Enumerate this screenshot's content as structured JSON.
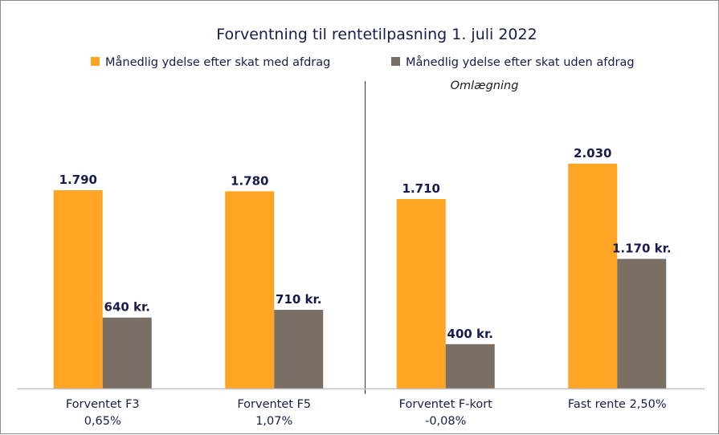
{
  "chart_data": {
    "type": "bar",
    "title": "Forventning til rentetilpasning 1. juli 2022",
    "categories": [
      {
        "line1": "Forventet F3",
        "line2": "0,65%"
      },
      {
        "line1": "Forventet F5",
        "line2": "1,07%"
      },
      {
        "line1": "Forventet F-kort",
        "line2": "-0,08%"
      },
      {
        "line1": "Fast rente 2,50%",
        "line2": ""
      }
    ],
    "series": [
      {
        "name": "Månedlig ydelse efter skat med afdrag",
        "color": "#FFA423",
        "values": [
          1790,
          1780,
          1710,
          2030
        ],
        "labels": [
          "1.790",
          "1.780",
          "1.710",
          "2.030"
        ]
      },
      {
        "name": "Månedlig ydelse efter skat uden afdrag",
        "color": "#7A6F64",
        "values": [
          640,
          710,
          400,
          1170
        ],
        "labels": [
          "640 kr.",
          "710 kr.",
          "400 kr.",
          "1.170 kr."
        ]
      }
    ],
    "annotation": "Omlægning",
    "ylim": [
      0,
      2300
    ],
    "grid": false,
    "legend_position": "top",
    "y_axis_visible": false
  }
}
